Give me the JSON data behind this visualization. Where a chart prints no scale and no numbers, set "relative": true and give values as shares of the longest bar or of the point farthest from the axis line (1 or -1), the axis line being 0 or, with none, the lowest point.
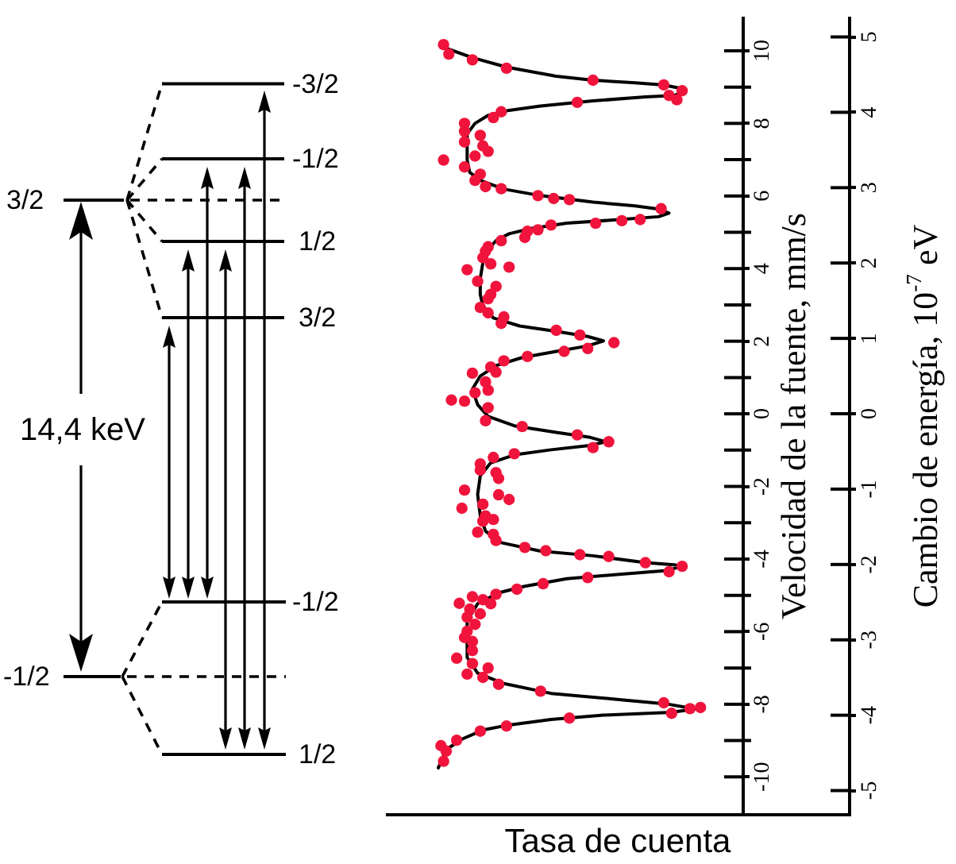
{
  "chart_data": {
    "type": "line",
    "orientation": "horizontal",
    "relative": true,
    "marker": "circle",
    "xlabel": "Tasa de cuenta",
    "ylabel": "Velocidad de la fuente, mm/s",
    "y2label": "Cambio de energía, 10$^{-7}$ eV",
    "ylim": [
      -11,
      10.9
    ],
    "yticks": [
      -10,
      -8,
      -6,
      -4,
      -2,
      0,
      2,
      4,
      6,
      8,
      10
    ],
    "y2lim": [
      -5.3,
      5.25
    ],
    "y2ticks": [
      -5,
      -4,
      -3,
      -2,
      -1,
      0,
      1,
      2,
      3,
      4,
      5
    ],
    "series": [
      {
        "color": "#000000",
        "marker": "none",
        "x": [
          10.07,
          9.81,
          9.55,
          9.3,
          9.19,
          9.12,
          9.06,
          8.97,
          8.87,
          8.77,
          8.73,
          8.62,
          8.48,
          8.36,
          8.22,
          8.0,
          7.71,
          7.35,
          6.99,
          6.65,
          6.43,
          6.19,
          6.01,
          5.83,
          5.73,
          5.64,
          5.53,
          5.43,
          5.35,
          5.25,
          5.1,
          4.96,
          4.77,
          4.52,
          4.16,
          3.73,
          3.29,
          2.97,
          2.64,
          2.42,
          2.27,
          2.13,
          2.01,
          1.87,
          1.72,
          1.55,
          1.33,
          1.04,
          0.68,
          0.25,
          -0.07,
          -0.33,
          -0.51,
          -0.65,
          -0.77,
          -0.88,
          -0.99,
          -1.13,
          -1.35,
          -1.71,
          -2.22,
          -2.8,
          -3.23,
          -3.55,
          -3.78,
          -3.91,
          -4.1,
          -4.16,
          -4.2,
          -4.32,
          -4.42,
          -4.54,
          -4.75,
          -4.93,
          -5.23,
          -5.7,
          -6.2,
          -6.71,
          -7.14,
          -7.43,
          -7.7,
          -7.87,
          -7.99,
          -8.13,
          -8.22,
          -8.3,
          -8.42,
          -8.57,
          -8.71,
          -8.96,
          -9.25,
          -9.75
        ],
        "values": [
          0.03,
          0.13,
          0.26,
          0.45,
          0.59,
          0.75,
          0.86,
          0.92,
          0.94,
          0.9,
          0.79,
          0.59,
          0.39,
          0.27,
          0.19,
          0.14,
          0.11,
          0.11,
          0.11,
          0.12,
          0.16,
          0.25,
          0.39,
          0.59,
          0.75,
          0.84,
          0.88,
          0.84,
          0.69,
          0.49,
          0.35,
          0.27,
          0.22,
          0.19,
          0.17,
          0.16,
          0.16,
          0.17,
          0.21,
          0.31,
          0.45,
          0.57,
          0.63,
          0.57,
          0.45,
          0.32,
          0.22,
          0.16,
          0.13,
          0.15,
          0.19,
          0.29,
          0.45,
          0.58,
          0.64,
          0.57,
          0.43,
          0.29,
          0.2,
          0.16,
          0.15,
          0.16,
          0.18,
          0.24,
          0.39,
          0.59,
          0.79,
          0.9,
          0.93,
          0.87,
          0.69,
          0.49,
          0.33,
          0.23,
          0.15,
          0.11,
          0.11,
          0.11,
          0.15,
          0.25,
          0.43,
          0.69,
          0.87,
          0.98,
          0.89,
          0.63,
          0.43,
          0.27,
          0.17,
          0.09,
          0.03,
          0
        ]
      },
      {
        "type": "scatter",
        "color": "#f0143c",
        "x": [
          10.17,
          9.91,
          9.75,
          9.52,
          9.19,
          9.06,
          8.9,
          8.77,
          8.65,
          8.58,
          8.32,
          8.16,
          8.0,
          7.78,
          7.67,
          7.49,
          7.38,
          7.23,
          7.1,
          6.99,
          6.8,
          6.6,
          6.43,
          6.26,
          6.2,
          6.01,
          5.93,
          5.9,
          5.65,
          5.35,
          5.32,
          5.25,
          5.2,
          5.07,
          5.03,
          4.86,
          4.77,
          4.6,
          4.48,
          4.3,
          4.13,
          4.04,
          3.97,
          3.65,
          3.51,
          3.29,
          3.17,
          2.93,
          2.78,
          2.67,
          2.49,
          2.3,
          2.17,
          1.96,
          1.8,
          1.72,
          1.58,
          1.46,
          1.29,
          1.15,
          1.12,
          0.88,
          0.65,
          0.58,
          0.38,
          0.35,
          0.17,
          -0.19,
          -0.35,
          -0.58,
          -0.77,
          -0.93,
          -1.1,
          -1.2,
          -1.38,
          -1.55,
          -1.62,
          -1.78,
          -2.1,
          -2.23,
          -2.36,
          -2.49,
          -2.6,
          -2.81,
          -2.91,
          -2.96,
          -3.26,
          -3.32,
          -3.49,
          -3.68,
          -3.77,
          -3.88,
          -3.93,
          -4.1,
          -4.2,
          -4.35,
          -4.51,
          -4.68,
          -4.83,
          -4.97,
          -5.04,
          -5.12,
          -5.22,
          -5.23,
          -5.38,
          -5.51,
          -5.6,
          -5.8,
          -5.99,
          -6.16,
          -6.27,
          -6.52,
          -6.73,
          -6.88,
          -7.0,
          -7.17,
          -7.26,
          -7.45,
          -7.64,
          -7.96,
          -8.12,
          -8.09,
          -8.25,
          -8.38,
          -8.6,
          -8.74,
          -8.99,
          -9.14,
          -9.29,
          -9.57
        ],
        "values": [
          0.02,
          0.04,
          0.13,
          0.26,
          0.59,
          0.86,
          0.93,
          0.88,
          0.91,
          0.53,
          0.24,
          0.21,
          0.1,
          0.1,
          0.16,
          0.1,
          0.17,
          0.19,
          0.14,
          0.02,
          0.1,
          0.16,
          0.14,
          0.18,
          0.24,
          0.38,
          0.44,
          0.5,
          0.85,
          0.77,
          0.7,
          0.6,
          0.43,
          0.38,
          0.34,
          0.33,
          0.24,
          0.19,
          0.18,
          0.17,
          0.2,
          0.27,
          0.11,
          0.15,
          0.22,
          0.2,
          0.19,
          0.16,
          0.19,
          0.25,
          0.24,
          0.45,
          0.54,
          0.67,
          0.57,
          0.48,
          0.34,
          0.25,
          0.2,
          0.22,
          0.13,
          0.18,
          0.19,
          0.14,
          0.05,
          0.1,
          0.19,
          0.18,
          0.32,
          0.53,
          0.65,
          0.59,
          0.29,
          0.21,
          0.16,
          0.16,
          0.22,
          0.23,
          0.1,
          0.23,
          0.27,
          0.17,
          0.09,
          0.18,
          0.21,
          0.17,
          0.15,
          0.21,
          0.22,
          0.33,
          0.41,
          0.54,
          0.65,
          0.79,
          0.93,
          0.88,
          0.57,
          0.4,
          0.3,
          0.22,
          0.13,
          0.17,
          0.08,
          0.2,
          0.12,
          0.16,
          0.11,
          0.14,
          0.11,
          0.1,
          0.13,
          0.13,
          0.07,
          0.13,
          0.19,
          0.11,
          0.17,
          0.23,
          0.39,
          0.86,
          0.96,
          1,
          0.89,
          0.5,
          0.26,
          0.16,
          0.07,
          0.01,
          0.03,
          0.02
        ]
      }
    ],
    "annotations": [
      "3/2",
      "-3/2",
      "-1/2",
      "1/2",
      "3/2",
      "14,4 keV",
      "-1/2",
      "-1/2",
      "1/2"
    ]
  }
}
